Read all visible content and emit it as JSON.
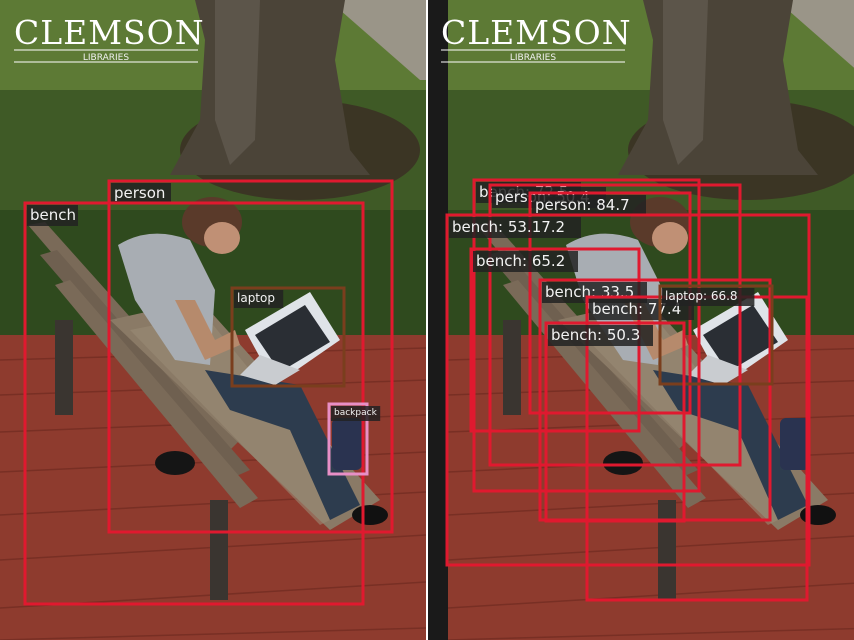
{
  "logo": {
    "name": "CLEMSON",
    "sub": "LIBRARIES"
  },
  "colors": {
    "box_red": "#e0192f",
    "box_brown": "#7a3e1d",
    "box_pink": "#e88fc6",
    "label_bg": "#222222"
  },
  "left_panel": {
    "detections": [
      {
        "label": "person",
        "color": "box_red"
      },
      {
        "label": "bench",
        "color": "box_red"
      },
      {
        "label": "laptop",
        "color": "box_brown"
      },
      {
        "label": "backpack",
        "color": "box_pink"
      }
    ]
  },
  "right_panel": {
    "detections": [
      {
        "label": "bench: 72.5",
        "color": "box_red"
      },
      {
        "label": "person: 50.4",
        "color": "box_red"
      },
      {
        "label": "person: 84.7",
        "color": "box_red"
      },
      {
        "label": "bench: 53.17.2",
        "color": "box_red"
      },
      {
        "label": "bench: 65.2",
        "color": "box_red"
      },
      {
        "label": "bench: 33.5",
        "color": "box_red"
      },
      {
        "label": "bench: 77.4",
        "color": "box_red"
      },
      {
        "label": "laptop: 66.8",
        "color": "box_brown"
      },
      {
        "label": "bench: 50.3",
        "color": "box_red"
      }
    ]
  }
}
